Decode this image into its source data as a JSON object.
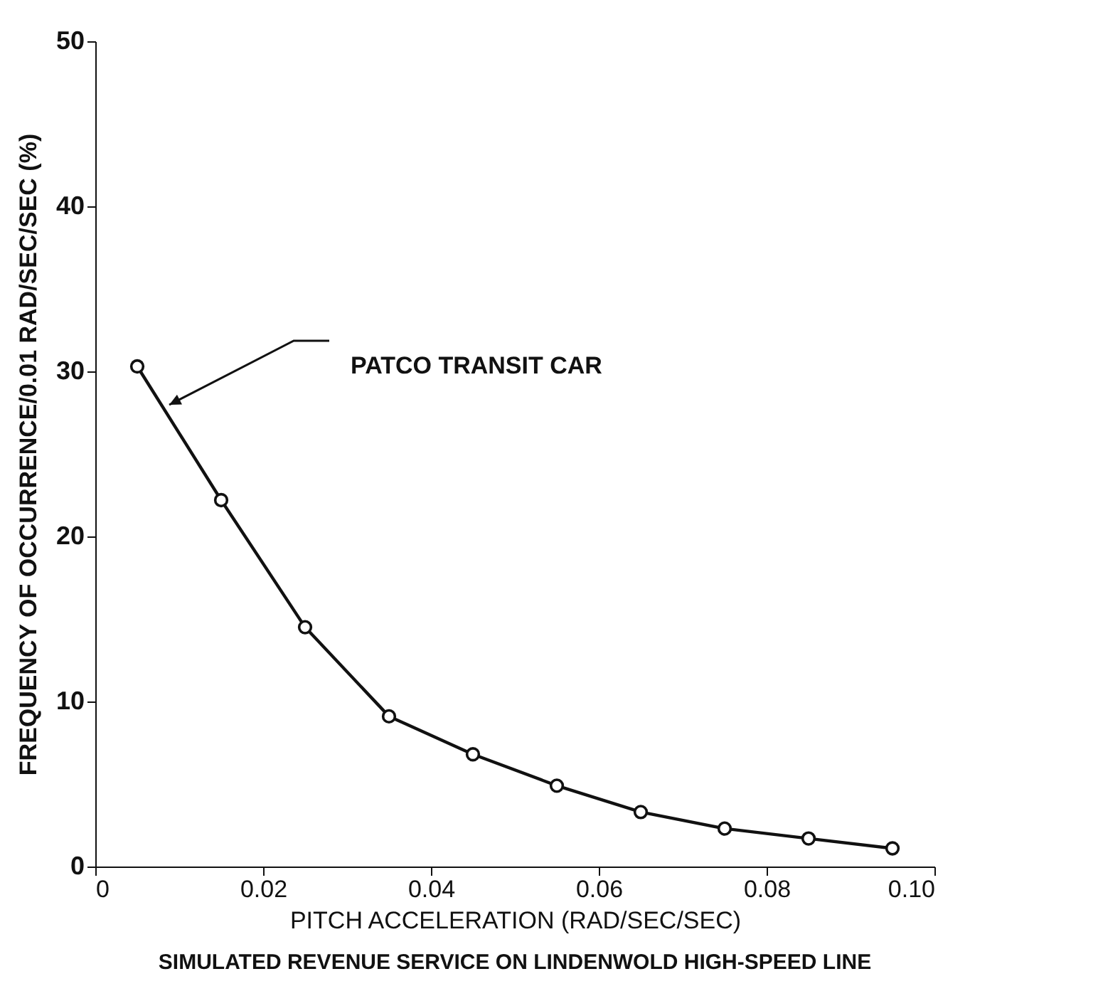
{
  "chart_data": {
    "type": "line",
    "title": "SIMULATED REVENUE SERVICE ON LINDENWOLD HIGH-SPEED LINE",
    "xlabel": "PITCH ACCELERATION (RAD/SEC/SEC)",
    "ylabel": "FREQUENCY OF OCCURRENCE/0.01 RAD/SEC/SEC (%)",
    "x": [
      0.005,
      0.015,
      0.025,
      0.035,
      0.045,
      0.055,
      0.065,
      0.075,
      0.085,
      0.095
    ],
    "series": [
      {
        "name": "PATCO TRANSIT CAR",
        "color": "#111111",
        "values": [
          30.3,
          22.2,
          14.5,
          9.1,
          6.8,
          4.9,
          3.3,
          2.3,
          1.7,
          1.1
        ]
      }
    ],
    "xlim": [
      0,
      0.1
    ],
    "xticks": [
      0,
      0.02,
      0.04,
      0.06,
      0.08,
      {
        "value": 0.1,
        "label": "0.10"
      }
    ],
    "ylim": [
      0,
      50
    ],
    "yticks": [
      0,
      10,
      20,
      30,
      40,
      50
    ],
    "grid": false,
    "marker": "circle",
    "line_style": "solid"
  }
}
